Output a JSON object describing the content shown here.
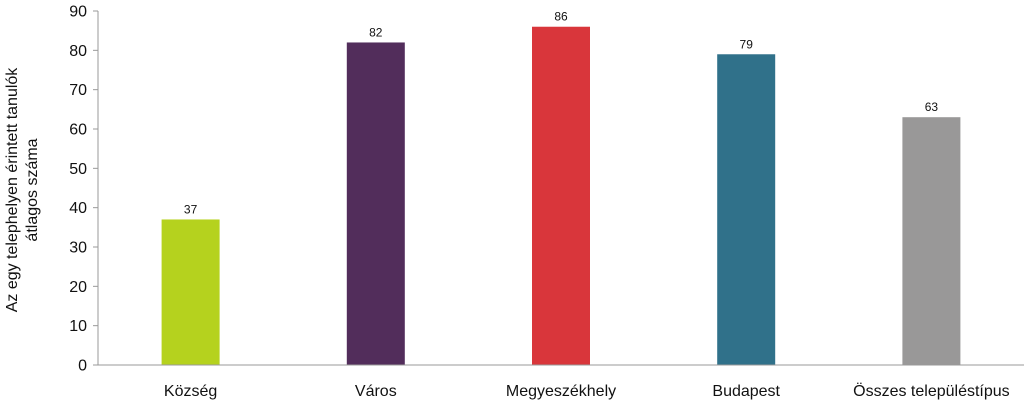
{
  "chart_data": {
    "type": "bar",
    "categories": [
      "Község",
      "Város",
      "Megyeszékhely",
      "Budapest",
      "Összes településtípus"
    ],
    "values": [
      37,
      82,
      86,
      79,
      63
    ],
    "data_labels": [
      "37",
      "82",
      "86",
      "79",
      "63"
    ],
    "colors": [
      "#b5d21e",
      "#522d5b",
      "#d9363b",
      "#30718a",
      "#999898"
    ],
    "ylabel_lines": [
      "Az egy telephelyen érintett tanulók",
      "átlagos száma"
    ],
    "ylim": [
      0,
      90
    ],
    "yticks": [
      0,
      10,
      20,
      30,
      40,
      50,
      60,
      70,
      80,
      90
    ],
    "grid": false,
    "legend": "none"
  }
}
